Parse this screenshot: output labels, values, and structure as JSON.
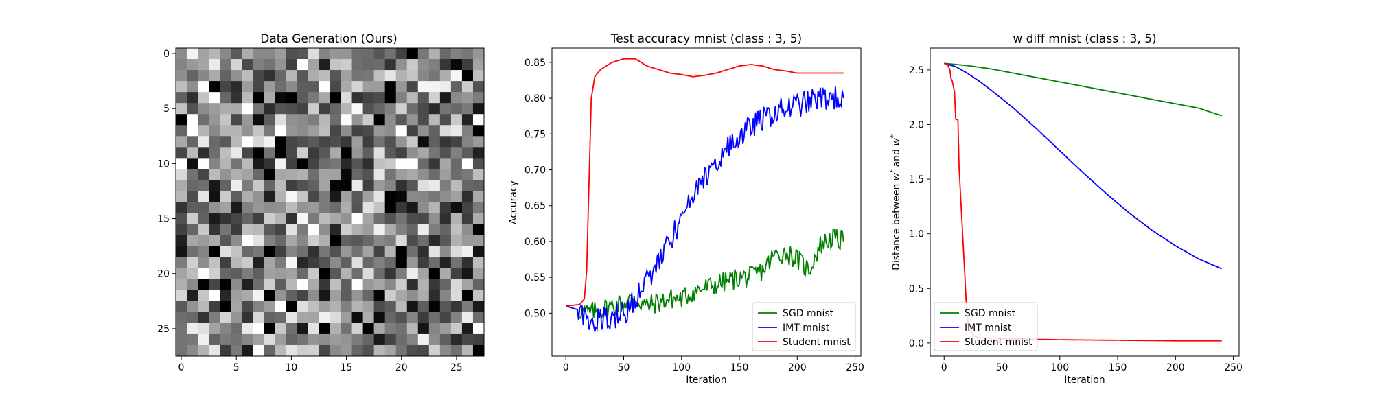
{
  "chart_data": [
    {
      "type": "heatmap",
      "title": "Data Generation (Ours)",
      "rows": 28,
      "cols": 28,
      "colormap": "gray",
      "xticks": [
        "0",
        "5",
        "10",
        "15",
        "20",
        "25"
      ],
      "yticks": [
        "0",
        "5",
        "10",
        "15",
        "20",
        "25"
      ],
      "values": "random-noise pattern (28x28 grayscale pixels, values 0-1)"
    },
    {
      "type": "line",
      "title": "Test accuracy mnist (class : 3, 5)",
      "xlabel": "Iteration",
      "ylabel": "Accuracy",
      "xlim": [
        -12,
        255
      ],
      "ylim": [
        0.44,
        0.87
      ],
      "xticks": [
        "0",
        "50",
        "100",
        "150",
        "200",
        "250"
      ],
      "yticks": [
        "0.50",
        "0.55",
        "0.60",
        "0.65",
        "0.70",
        "0.75",
        "0.80",
        "0.85"
      ],
      "legend": "lower-right",
      "series": [
        {
          "name": "SGD mnist",
          "color": "#008000",
          "points": [
            [
              0,
              0.51
            ],
            [
              10,
              0.505
            ],
            [
              20,
              0.5
            ],
            [
              30,
              0.505
            ],
            [
              40,
              0.51
            ],
            [
              50,
              0.515
            ],
            [
              60,
              0.52
            ],
            [
              70,
              0.51
            ],
            [
              80,
              0.515
            ],
            [
              90,
              0.52
            ],
            [
              100,
              0.52
            ],
            [
              110,
              0.53
            ],
            [
              120,
              0.535
            ],
            [
              130,
              0.54
            ],
            [
              140,
              0.545
            ],
            [
              150,
              0.55
            ],
            [
              160,
              0.55
            ],
            [
              170,
              0.56
            ],
            [
              180,
              0.58
            ],
            [
              190,
              0.585
            ],
            [
              200,
              0.575
            ],
            [
              210,
              0.56
            ],
            [
              220,
              0.595
            ],
            [
              230,
              0.605
            ],
            [
              240,
              0.6
            ]
          ]
        },
        {
          "name": "IMT mnist",
          "color": "#0000ff",
          "points": [
            [
              0,
              0.51
            ],
            [
              10,
              0.505
            ],
            [
              20,
              0.49
            ],
            [
              30,
              0.49
            ],
            [
              40,
              0.495
            ],
            [
              50,
              0.5
            ],
            [
              60,
              0.52
            ],
            [
              70,
              0.545
            ],
            [
              80,
              0.57
            ],
            [
              90,
              0.6
            ],
            [
              100,
              0.63
            ],
            [
              110,
              0.66
            ],
            [
              120,
              0.69
            ],
            [
              130,
              0.71
            ],
            [
              140,
              0.73
            ],
            [
              150,
              0.745
            ],
            [
              160,
              0.76
            ],
            [
              170,
              0.77
            ],
            [
              180,
              0.78
            ],
            [
              190,
              0.785
            ],
            [
              200,
              0.79
            ],
            [
              210,
              0.795
            ],
            [
              220,
              0.8
            ],
            [
              230,
              0.8
            ],
            [
              240,
              0.8
            ]
          ]
        },
        {
          "name": "Student mnist",
          "color": "#ff0000",
          "points": [
            [
              0,
              0.51
            ],
            [
              12,
              0.512
            ],
            [
              16,
              0.52
            ],
            [
              18,
              0.56
            ],
            [
              20,
              0.68
            ],
            [
              22,
              0.8
            ],
            [
              25,
              0.83
            ],
            [
              30,
              0.84
            ],
            [
              35,
              0.845
            ],
            [
              40,
              0.85
            ],
            [
              50,
              0.855
            ],
            [
              60,
              0.855
            ],
            [
              70,
              0.845
            ],
            [
              80,
              0.84
            ],
            [
              90,
              0.835
            ],
            [
              100,
              0.833
            ],
            [
              110,
              0.83
            ],
            [
              120,
              0.832
            ],
            [
              130,
              0.835
            ],
            [
              140,
              0.84
            ],
            [
              150,
              0.845
            ],
            [
              160,
              0.847
            ],
            [
              170,
              0.845
            ],
            [
              180,
              0.84
            ],
            [
              190,
              0.838
            ],
            [
              200,
              0.835
            ],
            [
              210,
              0.835
            ],
            [
              220,
              0.835
            ],
            [
              230,
              0.835
            ],
            [
              240,
              0.835
            ]
          ]
        }
      ]
    },
    {
      "type": "line",
      "title": "w diff mnist (class : 3, 5)",
      "xlabel": "Iteration",
      "ylabel": "Distance between w^t and w^*",
      "xlim": [
        -12,
        255
      ],
      "ylim": [
        -0.12,
        2.7
      ],
      "xticks": [
        "0",
        "50",
        "100",
        "150",
        "200",
        "250"
      ],
      "yticks": [
        "0.0",
        "0.5",
        "1.0",
        "1.5",
        "2.0",
        "2.5"
      ],
      "legend": "lower-left",
      "series": [
        {
          "name": "SGD mnist",
          "color": "#008000",
          "points": [
            [
              0,
              2.56
            ],
            [
              20,
              2.54
            ],
            [
              40,
              2.51
            ],
            [
              60,
              2.47
            ],
            [
              80,
              2.43
            ],
            [
              100,
              2.39
            ],
            [
              120,
              2.35
            ],
            [
              140,
              2.31
            ],
            [
              160,
              2.27
            ],
            [
              180,
              2.23
            ],
            [
              200,
              2.19
            ],
            [
              220,
              2.15
            ],
            [
              240,
              2.08
            ]
          ]
        },
        {
          "name": "IMT mnist",
          "color": "#0000ff",
          "points": [
            [
              0,
              2.56
            ],
            [
              10,
              2.53
            ],
            [
              20,
              2.47
            ],
            [
              30,
              2.4
            ],
            [
              40,
              2.32
            ],
            [
              60,
              2.15
            ],
            [
              80,
              1.96
            ],
            [
              100,
              1.76
            ],
            [
              120,
              1.56
            ],
            [
              140,
              1.37
            ],
            [
              160,
              1.19
            ],
            [
              180,
              1.03
            ],
            [
              200,
              0.89
            ],
            [
              220,
              0.77
            ],
            [
              240,
              0.68
            ]
          ]
        },
        {
          "name": "Student mnist",
          "color": "#ff0000",
          "points": [
            [
              0,
              2.56
            ],
            [
              3,
              2.55
            ],
            [
              5,
              2.5
            ],
            [
              6,
              2.42
            ],
            [
              7,
              2.4
            ],
            [
              8,
              2.35
            ],
            [
              9,
              2.3
            ],
            [
              10,
              2.05
            ],
            [
              12,
              2.04
            ],
            [
              13,
              1.6
            ],
            [
              15,
              1.2
            ],
            [
              17,
              0.8
            ],
            [
              19,
              0.4
            ],
            [
              21,
              0.15
            ],
            [
              25,
              0.07
            ],
            [
              30,
              0.05
            ],
            [
              50,
              0.04
            ],
            [
              100,
              0.03
            ],
            [
              150,
              0.025
            ],
            [
              200,
              0.02
            ],
            [
              240,
              0.02
            ]
          ]
        }
      ]
    }
  ]
}
